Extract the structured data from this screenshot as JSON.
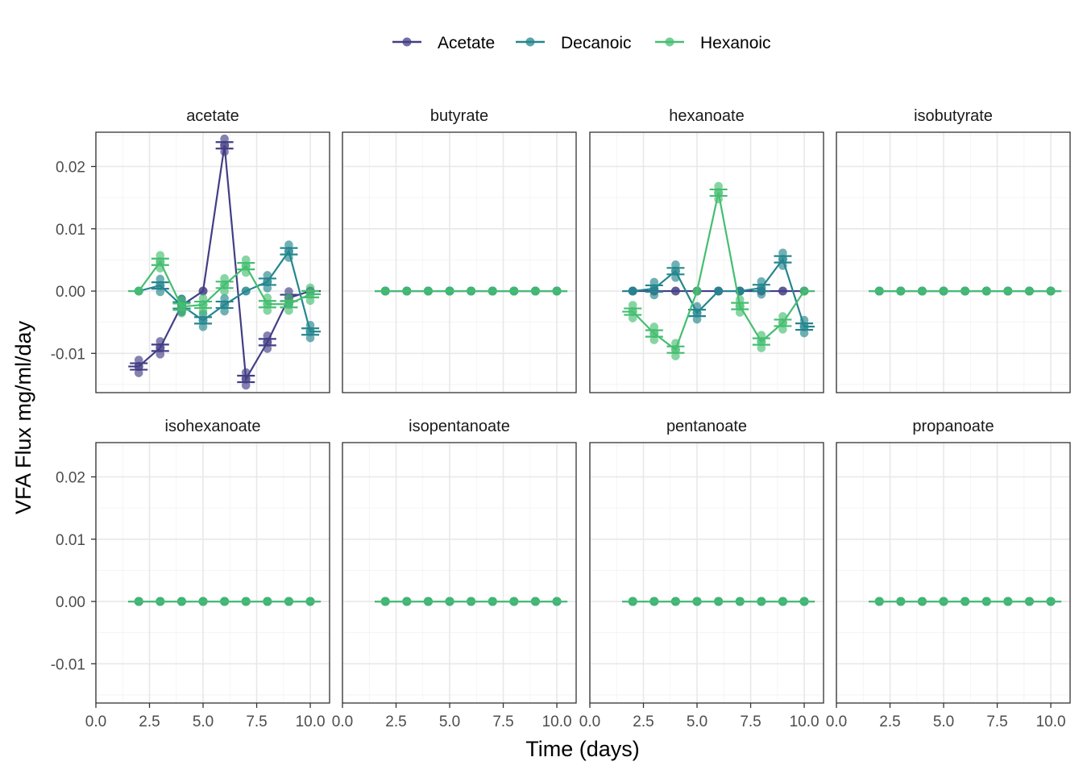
{
  "chart_data": {
    "type": "scatter",
    "xlabel": "Time (days)",
    "ylabel": "VFA Flux mg/ml/day",
    "xlim": [
      0,
      10.9
    ],
    "ylim": [
      -0.0163,
      0.0255
    ],
    "x_ticks": [
      0,
      2.5,
      5,
      7.5,
      10
    ],
    "x_tick_labels": [
      "0.0",
      "2.5",
      "5.0",
      "7.5",
      "10.0"
    ],
    "y_ticks": [
      -0.01,
      0,
      0.01,
      0.02
    ],
    "y_tick_labels": [
      "-0.01",
      "0.00",
      "0.01",
      "0.02"
    ],
    "grid": true,
    "legend_position": "top",
    "series": [
      {
        "name": "Acetate",
        "color": "#433E85"
      },
      {
        "name": "Decanoic",
        "color": "#24868E"
      },
      {
        "name": "Hexanoic",
        "color": "#45BE71"
      }
    ],
    "x": [
      2,
      3,
      4,
      5,
      6,
      7,
      8,
      9,
      10
    ],
    "panels": [
      {
        "title": "acetate",
        "values": {
          "Acetate": [
            -0.0121,
            -0.0091,
            -0.0023,
            0.0,
            0.0234,
            -0.0141,
            -0.0082,
            -0.0011,
            0.0
          ],
          "Decanoic": [
            0.0,
            0.0009,
            -0.0023,
            -0.0047,
            -0.0022,
            0.0,
            0.0015,
            0.0064,
            -0.0065
          ],
          "Hexanoic": [
            0.0,
            0.0047,
            -0.0025,
            -0.0022,
            0.001,
            0.004,
            -0.0021,
            -0.0021,
            -0.0005
          ]
        }
      },
      {
        "title": "butyrate",
        "values": {
          "Acetate": [
            0,
            0,
            0,
            0,
            0,
            0,
            0,
            0,
            0
          ],
          "Decanoic": [
            0,
            0,
            0,
            0,
            0,
            0,
            0,
            0,
            0
          ],
          "Hexanoic": [
            0,
            0,
            0,
            0,
            0,
            0,
            0,
            0,
            0
          ]
        }
      },
      {
        "title": "hexanoate",
        "values": {
          "Acetate": [
            0,
            0,
            0,
            0,
            0,
            0,
            0,
            0,
            0
          ],
          "Decanoic": [
            0.0,
            0.0004,
            0.0032,
            -0.0035,
            0.0,
            0.0,
            0.0005,
            0.0051,
            -0.0057
          ],
          "Hexanoic": [
            -0.0033,
            -0.0068,
            -0.0094,
            0.0,
            0.0158,
            -0.0024,
            -0.0081,
            -0.0051,
            0.0
          ]
        }
      },
      {
        "title": "isobutyrate",
        "values": {
          "Acetate": [
            0,
            0,
            0,
            0,
            0,
            0,
            0,
            0,
            0
          ],
          "Decanoic": [
            0,
            0,
            0,
            0,
            0,
            0,
            0,
            0,
            0
          ],
          "Hexanoic": [
            0,
            0,
            0,
            0,
            0,
            0,
            0,
            0,
            0
          ]
        }
      },
      {
        "title": "isohexanoate",
        "values": {
          "Acetate": [
            0,
            0,
            0,
            0,
            0,
            0,
            0,
            0,
            0
          ],
          "Decanoic": [
            0,
            0,
            0,
            0,
            0,
            0,
            0,
            0,
            0
          ],
          "Hexanoic": [
            0,
            0,
            0,
            0,
            0,
            0,
            0,
            0,
            0
          ]
        }
      },
      {
        "title": "isopentanoate",
        "values": {
          "Acetate": [
            0,
            0,
            0,
            0,
            0,
            0,
            0,
            0,
            0
          ],
          "Decanoic": [
            0,
            0,
            0,
            0,
            0,
            0,
            0,
            0,
            0
          ],
          "Hexanoic": [
            0,
            0,
            0,
            0,
            0,
            0,
            0,
            0,
            0
          ]
        }
      },
      {
        "title": "pentanoate",
        "values": {
          "Acetate": [
            0,
            0,
            0,
            0,
            0,
            0,
            0,
            0,
            0
          ],
          "Decanoic": [
            0,
            0,
            0,
            0,
            0,
            0,
            0,
            0,
            0
          ],
          "Hexanoic": [
            0,
            0,
            0,
            0,
            0,
            0,
            0,
            0,
            0
          ]
        }
      },
      {
        "title": "propanoate",
        "values": {
          "Acetate": [
            0,
            0,
            0,
            0,
            0,
            0,
            0,
            0,
            0
          ],
          "Decanoic": [
            0,
            0,
            0,
            0,
            0,
            0,
            0,
            0,
            0
          ],
          "Hexanoic": [
            0,
            0,
            0,
            0,
            0,
            0,
            0,
            0,
            0
          ]
        }
      }
    ]
  }
}
